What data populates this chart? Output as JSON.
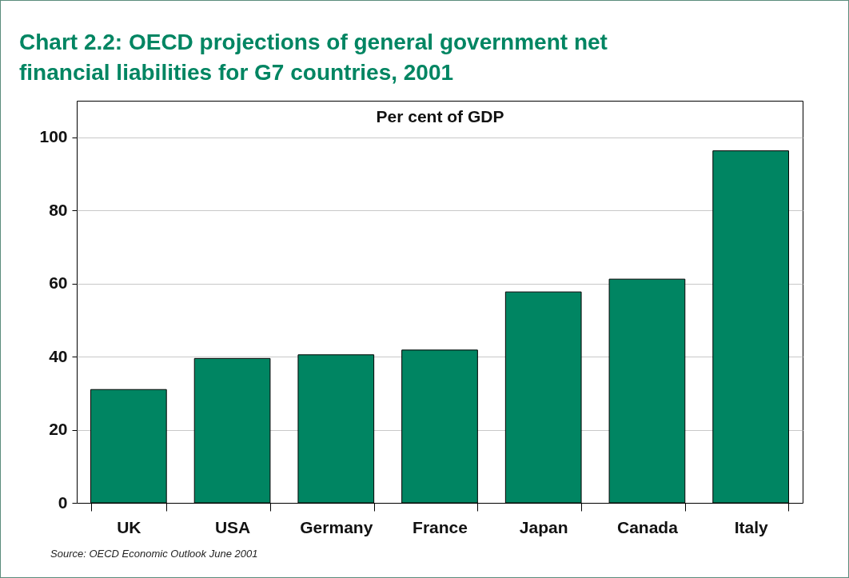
{
  "chart_data": {
    "type": "bar",
    "title": "Chart 2.2: OECD projections of general government net financial liabilities for G7 countries, 2001",
    "ylabel": "Per cent of GDP",
    "categories": [
      "UK",
      "USA",
      "Germany",
      "France",
      "Japan",
      "Canada",
      "Italy"
    ],
    "values": [
      31,
      39.5,
      40.5,
      41.8,
      57.7,
      61.2,
      96.3
    ],
    "color": "#008562",
    "ylim": [
      0,
      110
    ],
    "yticks": [
      0,
      20,
      40,
      60,
      80,
      100
    ],
    "grid": "y",
    "annotations": [
      "Source: OECD Economic Outlook June 2001"
    ]
  }
}
